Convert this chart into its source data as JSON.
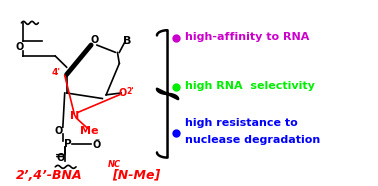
{
  "bg_color": "#ffffff",
  "bullet1_color": "#cc00cc",
  "bullet2_color": "#00ee00",
  "bullet3_color": "#0000ff",
  "bullet1_text": "high-affinity to RNA",
  "bullet2_text": "high RNA  selectivity",
  "bullet3_line1": "high resistance to",
  "bullet3_line2": "nuclease degradation",
  "label_color": "#ff0000",
  "struct_color": "#000000",
  "red_color": "#ff0000",
  "fig_width": 3.78,
  "fig_height": 1.86,
  "dpi": 100
}
